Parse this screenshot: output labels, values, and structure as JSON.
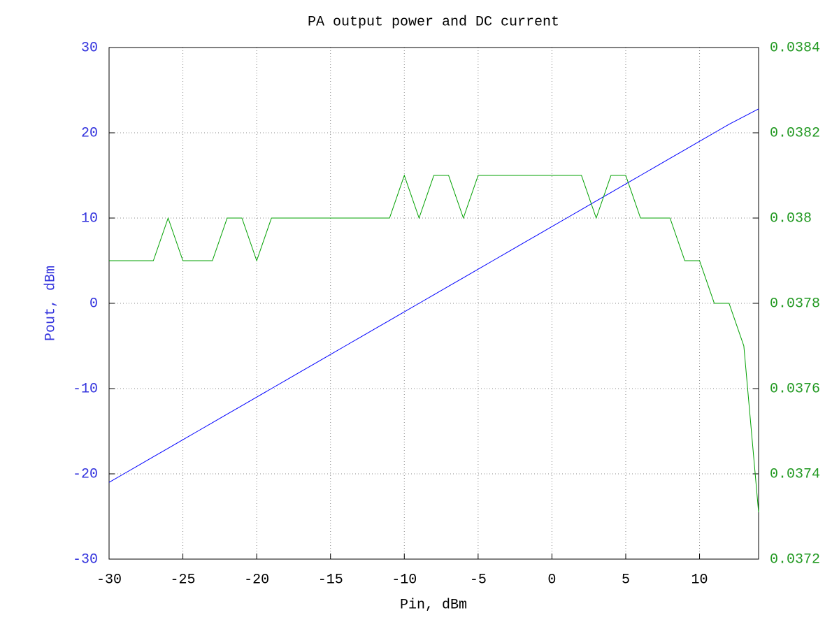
{
  "chart_data": {
    "type": "line",
    "title": "PA output power and DC current",
    "x_label": "Pin, dBm",
    "y_label": "Pout, dBm",
    "x": [
      -30,
      -29,
      -28,
      -27,
      -26,
      -25,
      -24,
      -23,
      -22,
      -21,
      -20,
      -19,
      -18,
      -17,
      -16,
      -15,
      -14,
      -13,
      -12,
      -11,
      -10,
      -9,
      -8,
      -7,
      -6,
      -5,
      -4,
      -3,
      -2,
      -1,
      0,
      1,
      2,
      3,
      4,
      5,
      6,
      7,
      8,
      9,
      10,
      11,
      12,
      13,
      14
    ],
    "series": [
      {
        "color": "#0000ff",
        "values": [
          -21,
          -20,
          -19,
          -18,
          -17,
          -16,
          -15,
          -14,
          -13,
          -12,
          -11,
          -10,
          -9,
          -8,
          -7,
          -6,
          -5,
          -4,
          -3,
          -2,
          -1,
          0,
          1,
          2,
          3,
          4,
          5,
          6,
          7,
          8,
          9,
          10,
          11,
          12,
          13,
          14,
          15,
          16,
          17,
          18,
          19,
          20,
          21,
          21.9,
          22.8
        ]
      },
      {
        "color": "#00a000",
        "axis": "y2",
        "values": [
          0.0379,
          0.0379,
          0.0379,
          0.0379,
          0.038,
          0.0379,
          0.0379,
          0.0379,
          0.038,
          0.038,
          0.0379,
          0.038,
          0.038,
          0.038,
          0.038,
          0.038,
          0.038,
          0.038,
          0.038,
          0.038,
          0.0381,
          0.038,
          0.0381,
          0.0381,
          0.038,
          0.0381,
          0.0381,
          0.0381,
          0.0381,
          0.0381,
          0.0381,
          0.0381,
          0.0381,
          0.038,
          0.0381,
          0.0381,
          0.038,
          0.038,
          0.038,
          0.0379,
          0.0379,
          0.0378,
          0.0378,
          0.0377,
          0.03731
        ]
      }
    ],
    "xlim": [
      -30,
      14
    ],
    "xticks": [
      -30,
      -25,
      -20,
      -15,
      -10,
      -5,
      0,
      5,
      10
    ],
    "ylim": [
      -30,
      30
    ],
    "yticks": [
      -30,
      -20,
      -10,
      0,
      10,
      20,
      30
    ],
    "y2lim": [
      0.0372,
      0.0384
    ],
    "y2ticks": [
      0.0372,
      0.0374,
      0.0376,
      0.0378,
      0.038,
      0.0382,
      0.0384
    ],
    "y_color": "#3333dd",
    "y2_color": "#229922",
    "grid": true
  }
}
